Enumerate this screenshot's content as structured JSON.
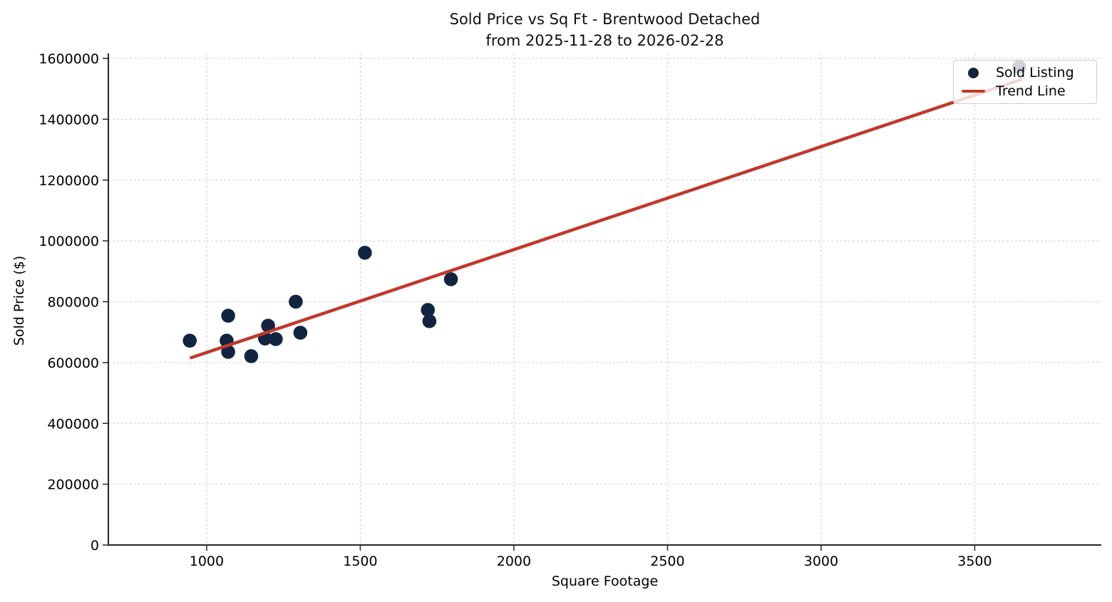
{
  "header": {
    "line1": "Sold Price vs Sq Ft - Brentwood Detached",
    "line2": "from 2025-11-28 to 2026-02-28"
  },
  "chart_data": {
    "type": "scatter",
    "title": "Sold Price vs Sq Ft - Brentwood Detached\nfrom 2025-11-28 to 2026-02-28",
    "xlabel": "Square Footage",
    "ylabel": "Sold Price ($)",
    "xlim": [
      680,
      3912
    ],
    "ylim": [
      0,
      1616400
    ],
    "x_ticks": [
      1000,
      1500,
      2000,
      2500,
      3000,
      3500
    ],
    "y_ticks": [
      0,
      200000,
      400000,
      600000,
      800000,
      1000000,
      1200000,
      1400000,
      1600000
    ],
    "grid": true,
    "legend_position": "upper right",
    "series": [
      {
        "name": "Sold Listing",
        "type": "scatter",
        "color": "#132440",
        "points": [
          [
            945,
            672000
          ],
          [
            1070,
            754000
          ],
          [
            1065,
            672000
          ],
          [
            1070,
            635000
          ],
          [
            1145,
            621000
          ],
          [
            1190,
            679000
          ],
          [
            1200,
            721000
          ],
          [
            1225,
            677000
          ],
          [
            1290,
            800000
          ],
          [
            1305,
            698000
          ],
          [
            1515,
            961000
          ],
          [
            1720,
            773000
          ],
          [
            1725,
            736000
          ],
          [
            1795,
            874000
          ],
          [
            3645,
            1572000
          ]
        ]
      },
      {
        "name": "Trend Line",
        "type": "line",
        "color": "#c0392b",
        "points": [
          [
            950,
            616000
          ],
          [
            3650,
            1530000
          ]
        ]
      }
    ],
    "colors": {
      "grid": "#cfcfcf",
      "axis": "#262626",
      "text": "#000000",
      "title": "#101010"
    }
  }
}
